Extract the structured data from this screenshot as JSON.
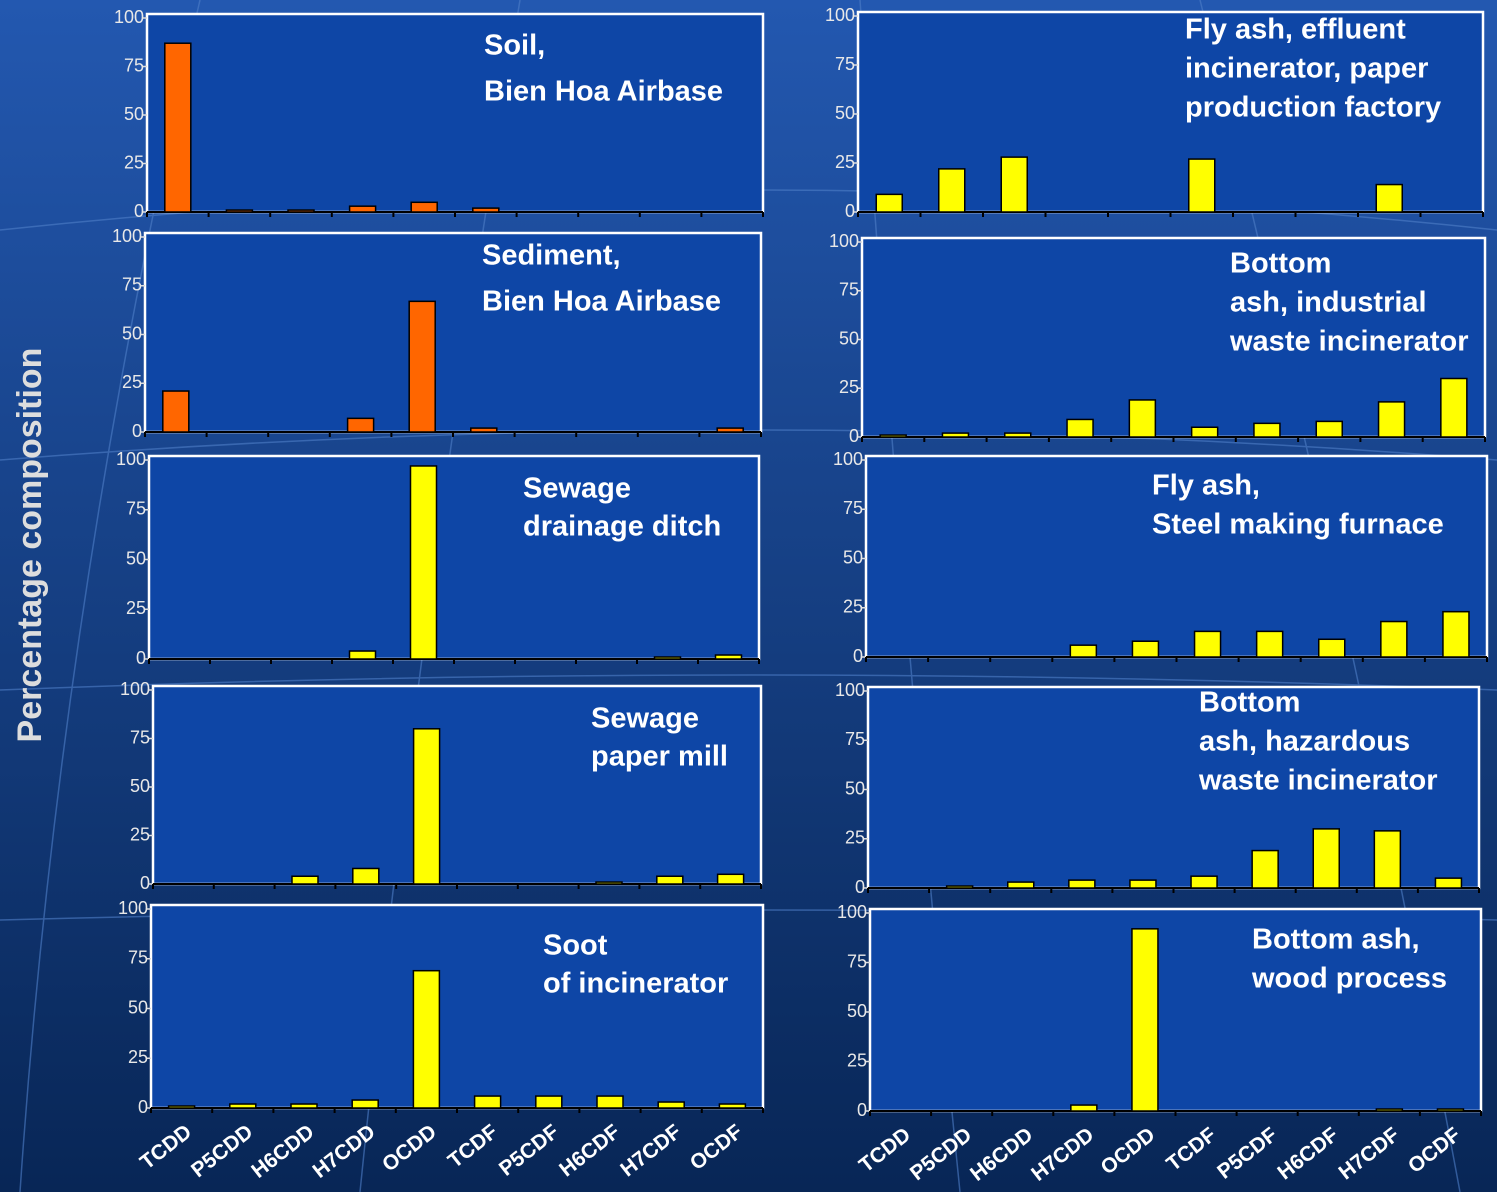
{
  "y_label": "Percentage composition",
  "chart_data": [
    {
      "type": "bar",
      "title": [
        "Soil,",
        "Bien Hoa Airbase"
      ],
      "color": "#ff6600",
      "values": [
        87,
        1,
        1,
        3,
        5,
        2,
        0,
        0,
        0,
        0
      ],
      "ylim": [
        0,
        100
      ],
      "yticks": [
        0,
        25,
        50,
        75,
        100
      ]
    },
    {
      "type": "bar",
      "title": [
        "Sediment,",
        "Bien Hoa Airbase"
      ],
      "color": "#ff6600",
      "values": [
        21,
        0,
        0,
        7,
        67,
        2,
        0,
        0,
        0,
        2
      ],
      "ylim": [
        0,
        100
      ],
      "yticks": [
        0,
        25,
        50,
        75,
        100
      ]
    },
    {
      "type": "bar",
      "title": [
        "Sewage",
        "drainage ditch"
      ],
      "color": "#ffff00",
      "values": [
        0,
        0,
        0,
        4,
        97,
        0,
        0,
        0,
        1,
        2
      ],
      "ylim": [
        0,
        100
      ],
      "yticks": [
        0,
        25,
        50,
        75,
        100
      ]
    },
    {
      "type": "bar",
      "title": [
        "Sewage",
        "paper mill"
      ],
      "color": "#ffff00",
      "values": [
        0,
        0,
        4,
        8,
        80,
        0,
        0,
        1,
        4,
        5
      ],
      "ylim": [
        0,
        100
      ],
      "yticks": [
        0,
        25,
        50,
        75,
        100
      ]
    },
    {
      "type": "bar",
      "title": [
        "Soot",
        "of incinerator"
      ],
      "color": "#ffff00",
      "categories": [
        "TCDD",
        "P5CDD",
        "H6CDD",
        "H7CDD",
        "OCDD",
        "TCDF",
        "P5CDF",
        "H6CDF",
        "H7CDF",
        "OCDF"
      ],
      "values": [
        1,
        2,
        2,
        4,
        69,
        6,
        6,
        6,
        3,
        2
      ],
      "ylim": [
        0,
        100
      ],
      "yticks": [
        0,
        25,
        50,
        75,
        100
      ]
    },
    {
      "type": "bar",
      "title": [
        "Fly ash, effluent",
        "incinerator, paper",
        "production factory"
      ],
      "color": "#ffff00",
      "values": [
        9,
        22,
        28,
        0,
        0,
        27,
        0,
        0,
        14,
        0
      ],
      "ylim": [
        0,
        100
      ],
      "yticks": [
        0,
        25,
        50,
        75,
        100
      ]
    },
    {
      "type": "bar",
      "title": [
        "Bottom",
        "ash, industrial",
        "waste incinerator"
      ],
      "color": "#ffff00",
      "values": [
        1,
        2,
        2,
        9,
        19,
        5,
        7,
        8,
        18,
        30
      ],
      "ylim": [
        0,
        100
      ],
      "yticks": [
        0,
        25,
        50,
        75,
        100
      ]
    },
    {
      "type": "bar",
      "title": [
        "Fly ash,",
        "Steel making furnace"
      ],
      "color": "#ffff00",
      "values": [
        0,
        0,
        0,
        6,
        8,
        13,
        13,
        9,
        18,
        23
      ],
      "ylim": [
        0,
        100
      ],
      "yticks": [
        0,
        25,
        50,
        75,
        100
      ]
    },
    {
      "type": "bar",
      "title": [
        "Bottom",
        "ash, hazardous",
        "waste incinerator"
      ],
      "color": "#ffff00",
      "values": [
        0,
        1,
        3,
        4,
        4,
        6,
        19,
        30,
        29,
        5
      ],
      "ylim": [
        0,
        100
      ],
      "yticks": [
        0,
        25,
        50,
        75,
        100
      ]
    },
    {
      "type": "bar",
      "title": [
        "Bottom ash,",
        "wood process"
      ],
      "color": "#ffff00",
      "categories": [
        "TCDD",
        "P5CDD",
        "H6CDD",
        "H7CDD",
        "OCDD",
        "TCDF",
        "P5CDF",
        "H6CDF",
        "H7CDF",
        "OCDF"
      ],
      "values": [
        0,
        0,
        0,
        3,
        92,
        0,
        0,
        0,
        1,
        1
      ],
      "ylim": [
        0,
        100
      ],
      "yticks": [
        0,
        25,
        50,
        75,
        100
      ]
    }
  ]
}
